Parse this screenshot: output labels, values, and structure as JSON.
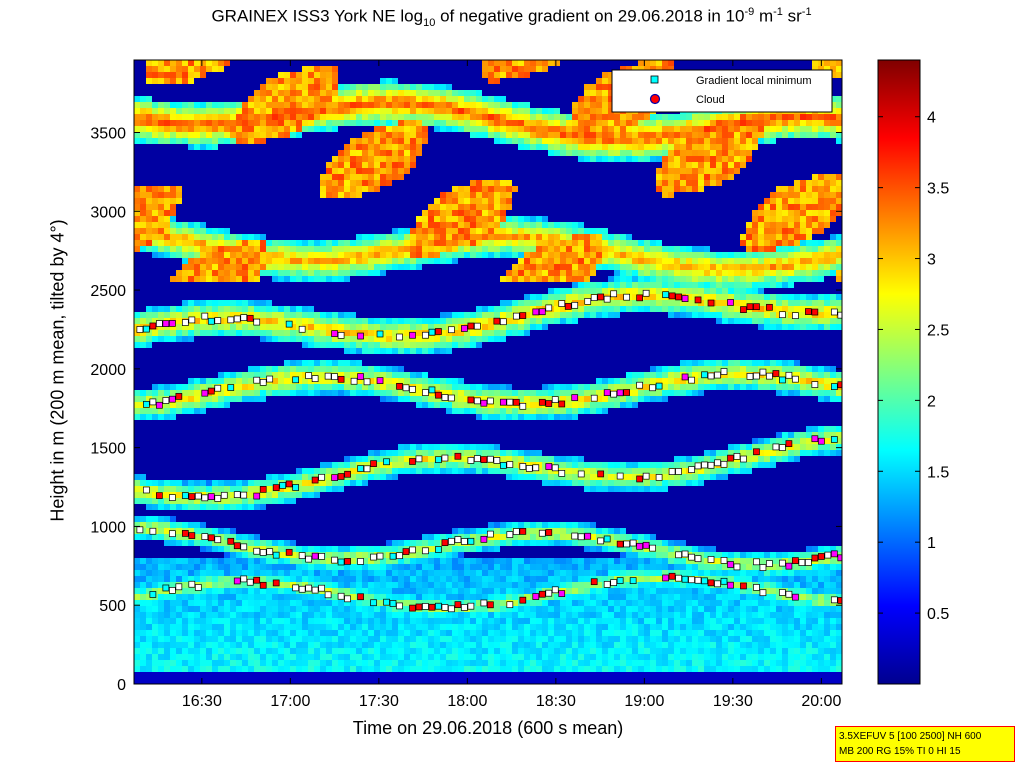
{
  "chart_data": {
    "type": "heatmap",
    "title": {
      "prefix": "GRAINEX ISS3 York NE log",
      "sub": "10",
      "middle": " of negative gradient on 29.06.2018 in 10",
      "sup1": "-9",
      "unit1": " m",
      "sup2": "-1",
      "unit2": " sr",
      "sup3": "-1"
    },
    "xlabel": "Time on 29.06.2018 (600 s mean)",
    "ylabel": "Height in m (200 m mean, tilted by 4°)",
    "x_ticks": [
      "16:30",
      "17:00",
      "17:30",
      "18:00",
      "18:30",
      "19:00",
      "19:30",
      "20:00"
    ],
    "x_range": [
      "16:07",
      "20:07"
    ],
    "y_ticks": [
      0,
      500,
      1000,
      1500,
      2000,
      2500,
      3000,
      3500
    ],
    "y_range": [
      0,
      3960
    ],
    "colorbar": {
      "ticks": [
        0.5,
        1,
        1.5,
        2,
        2.5,
        3,
        3.5,
        4
      ],
      "range": [
        0,
        4.4
      ]
    },
    "legend": {
      "position": "top-right",
      "entries": [
        {
          "label": "Gradient local minimum",
          "color": "#00ffff"
        },
        {
          "label": "Cloud",
          "color": "#ff0000"
        }
      ]
    },
    "layers": [
      {
        "height_start": 550,
        "height_end": 600,
        "level": 2.5
      },
      {
        "height_start": 900,
        "height_end": 840,
        "level": 2.6
      },
      {
        "height_start": 1250,
        "height_end": 1470,
        "level": 2.8
      },
      {
        "height_start": 1850,
        "height_end": 1880,
        "level": 2.9
      },
      {
        "height_start": 2200,
        "height_end": 2450,
        "level": 3.0
      },
      {
        "height_start": 2800,
        "height_end": 2700,
        "level": 3.2
      },
      {
        "height_start": 3650,
        "height_end": 3500,
        "level": 3.5
      }
    ]
  },
  "info_box": {
    "line1": "3.5XEFUV 5 [100 2500] NH 600",
    "line2": "MB 200 RG 15% TI 0 HI 15"
  }
}
